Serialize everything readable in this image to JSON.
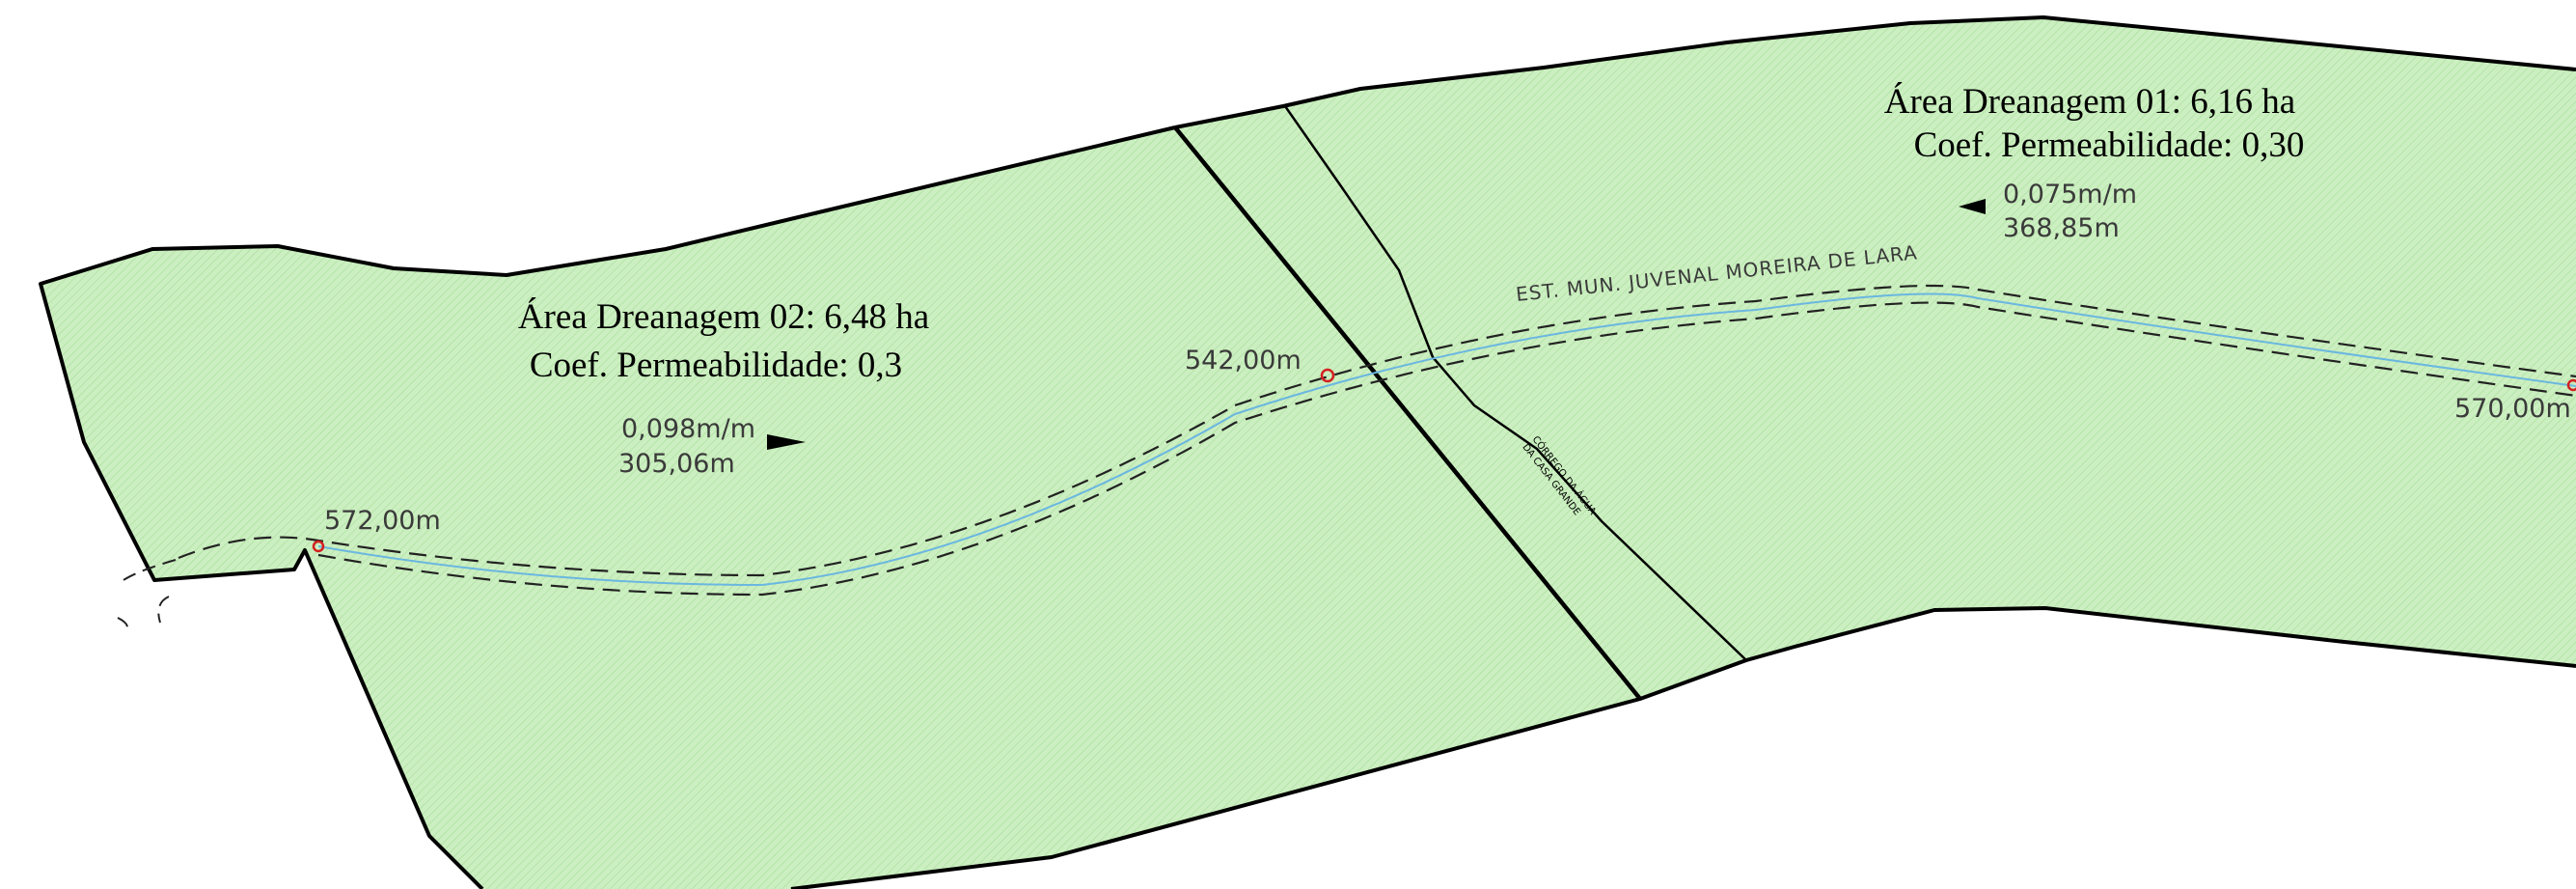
{
  "drainage_areas": [
    {
      "title": "Área Dreanagem 01:  6,16 ha",
      "permeability": "Coef. Permeabilidade: 0,30",
      "slope": "0,075m/m",
      "length": "368,85m",
      "flow_direction": "left"
    },
    {
      "title": "Área Dreanagem 02:  6,48 ha",
      "permeability": "Coef. Permeabilidade: 0,3",
      "slope": "0,098m/m",
      "length": "305,06m",
      "flow_direction": "right"
    }
  ],
  "elevations": {
    "left_point": "572,00m",
    "middle_point": "542,00m",
    "right_point": "570,00m"
  },
  "road_label": "EST. MUN. JUVENAL MOREIRA DE LARA",
  "stream_label": {
    "line1": "CÓRREGO DA ÁGUA",
    "line2": "DA CASA GRANDE"
  },
  "colors": {
    "area_fill": "#cbefc0",
    "hatch": "#9fd893",
    "boundary": "#000000",
    "flow_line": "#6ab7e0",
    "road_edge": "#222222",
    "point_marker": "#d42020"
  }
}
